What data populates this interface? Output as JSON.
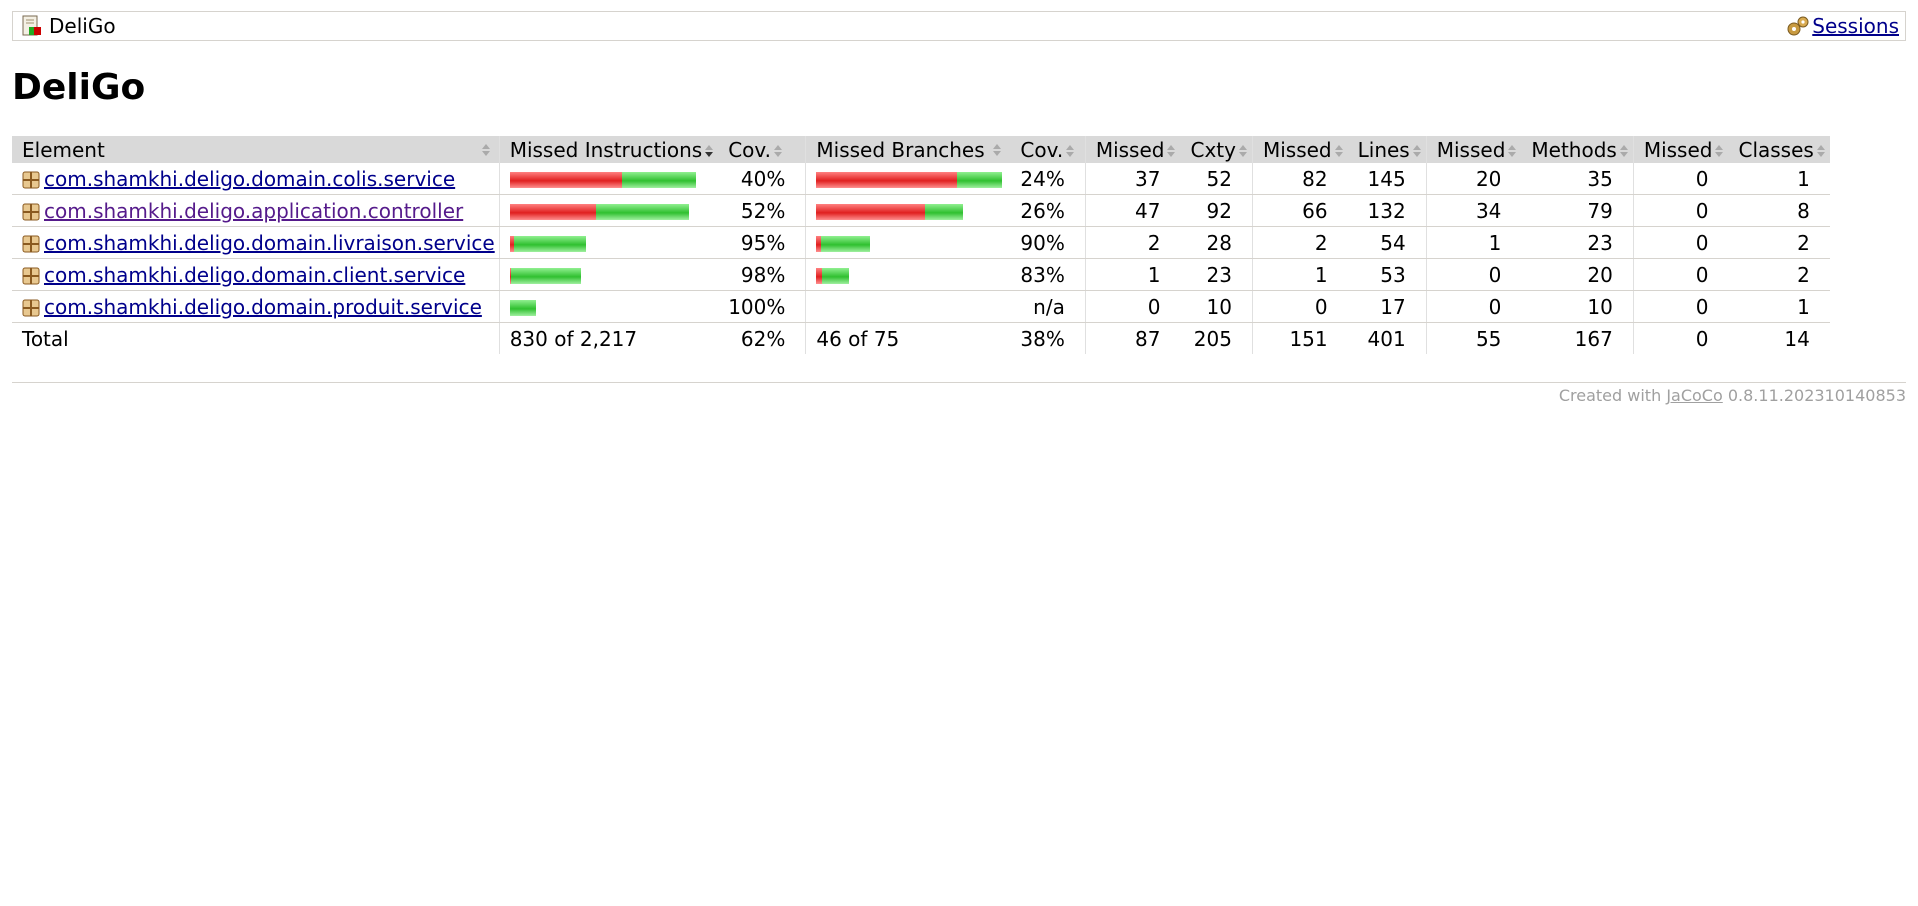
{
  "breadcrumb": {
    "report_label": "DeliGo",
    "sessions_label": "Sessions"
  },
  "page_title": "DeliGo",
  "table": {
    "headers": {
      "element": "Element",
      "missed_instructions": "Missed Instructions",
      "cov1": "Cov.",
      "missed_branches": "Missed Branches",
      "cov2": "Cov.",
      "missed_cxty": "Missed",
      "cxty": "Cxty",
      "missed_lines": "Missed",
      "lines": "Lines",
      "missed_methods": "Missed",
      "methods": "Methods",
      "missed_classes": "Missed",
      "classes": "Classes"
    },
    "rows": [
      {
        "name": "com.shamkhi.deligo.domain.colis.service",
        "instr_missed_frac": 0.6,
        "instr_width_frac": 1.0,
        "cov1": "40%",
        "br_missed_frac": 0.76,
        "br_width_frac": 1.0,
        "cov2": "24%",
        "missed_cxty": "37",
        "cxty": "52",
        "missed_lines": "82",
        "lines": "145",
        "missed_methods": "20",
        "methods": "35",
        "missed_classes": "0",
        "classes": "1"
      },
      {
        "name": "com.shamkhi.deligo.application.controller",
        "instr_missed_frac": 0.48,
        "instr_width_frac": 0.96,
        "cov1": "52%",
        "br_missed_frac": 0.74,
        "br_width_frac": 0.79,
        "cov2": "26%",
        "missed_cxty": "47",
        "cxty": "92",
        "missed_lines": "66",
        "lines": "132",
        "missed_methods": "34",
        "methods": "79",
        "missed_classes": "0",
        "classes": "8"
      },
      {
        "name": "com.shamkhi.deligo.domain.livraison.service",
        "instr_missed_frac": 0.05,
        "instr_width_frac": 0.41,
        "cov1": "95%",
        "br_missed_frac": 0.1,
        "br_width_frac": 0.29,
        "cov2": "90%",
        "missed_cxty": "2",
        "cxty": "28",
        "missed_lines": "2",
        "lines": "54",
        "missed_methods": "1",
        "methods": "23",
        "missed_classes": "0",
        "classes": "2"
      },
      {
        "name": "com.shamkhi.deligo.domain.client.service",
        "instr_missed_frac": 0.02,
        "instr_width_frac": 0.38,
        "cov1": "98%",
        "br_missed_frac": 0.17,
        "br_width_frac": 0.18,
        "cov2": "83%",
        "missed_cxty": "1",
        "cxty": "23",
        "missed_lines": "1",
        "lines": "53",
        "missed_methods": "0",
        "methods": "20",
        "missed_classes": "0",
        "classes": "2"
      },
      {
        "name": "com.shamkhi.deligo.domain.produit.service",
        "instr_missed_frac": 0.0,
        "instr_width_frac": 0.14,
        "cov1": "100%",
        "br_missed_frac": 0.0,
        "br_width_frac": 0.0,
        "cov2": "n/a",
        "missed_cxty": "0",
        "cxty": "10",
        "missed_lines": "0",
        "lines": "17",
        "missed_methods": "0",
        "methods": "10",
        "missed_classes": "0",
        "classes": "1"
      }
    ],
    "total": {
      "label": "Total",
      "instructions": "830 of 2,217",
      "cov1": "62%",
      "branches": "46 of 75",
      "cov2": "38%",
      "missed_cxty": "87",
      "cxty": "205",
      "missed_lines": "151",
      "lines": "401",
      "missed_methods": "55",
      "methods": "167",
      "missed_classes": "0",
      "classes": "14"
    }
  },
  "footer": {
    "prefix": "Created with",
    "link": "JaCoCo",
    "version": "0.8.11.202310140853"
  },
  "icons": {
    "report": "report-icon",
    "sessions": "session-icon",
    "package": "package-icon",
    "sort": "sort-icon"
  }
}
